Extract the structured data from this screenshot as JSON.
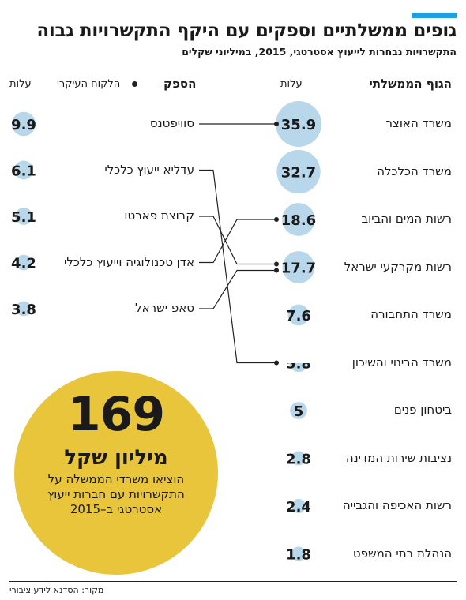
{
  "header": {
    "title": "גופים ממשלתיים וספקים עם היקף התקשרויות גבוה",
    "subtitle": "התקשרויות נבחרות לייעוץ אסטרטגי, 2015, במיליוני שקלים",
    "left_col_title": "הגוף הממשלתי",
    "left_cost_label": "עלות",
    "right_col_title": "הספק",
    "legend_label": "הלקוח העיקרי",
    "right_cost_label": "עלות"
  },
  "highlight": {
    "number": "169",
    "unit": "מיליון שקל",
    "text": "הוציאו משרדי הממשלה על התקשרויות עם חברות ייעוץ אסטרטגי ב–2015"
  },
  "source": "מקור: הסדנא לידע ציבורי",
  "colors": {
    "accent": "#1ea0e0",
    "bubble": "#b9d7ea",
    "highlight_circle": "#e9c53b",
    "line": "#222222"
  },
  "chart_data": {
    "type": "bubble-connector",
    "title": "גופים ממשלתיים וספקים עם היקף התקשרויות גבוה",
    "subtitle": "התקשרויות נבחרות לייעוץ אסטרטגי, 2015, במיליוני שקלים",
    "ministries": [
      {
        "name": "משרד האוצר",
        "cost": 35.9,
        "label": "35.9"
      },
      {
        "name": "משרד הכלכלה",
        "cost": 32.7,
        "label": "32.7"
      },
      {
        "name": "רשות המים והביוב",
        "cost": 18.6,
        "label": "18.6"
      },
      {
        "name": "רשות מקרקעי ישראל",
        "cost": 17.7,
        "label": "17.7"
      },
      {
        "name": "משרד התחבורה",
        "cost": 7.6,
        "label": "7.6"
      },
      {
        "name": "משרד הבינוי והשיכון",
        "cost": 5.8,
        "label": "5.8"
      },
      {
        "name": "ביטחון פנים",
        "cost": 5,
        "label": "5"
      },
      {
        "name": "נציבות שירות המדינה",
        "cost": 2.8,
        "label": "2.8"
      },
      {
        "name": "רשות האכיפה והגבייה",
        "cost": 2.4,
        "label": "2.4"
      },
      {
        "name": "הנהלת בתי המשפט",
        "cost": 1.8,
        "label": "1.8"
      }
    ],
    "suppliers": [
      {
        "name": "סוויפטנס",
        "cost": 9.9,
        "label": "9.9",
        "main_client": "משרד האוצר"
      },
      {
        "name": "עדליא ייעוץ כלכלי",
        "cost": 6.1,
        "label": "6.1",
        "main_client": "משרד הבינוי והשיכון"
      },
      {
        "name": "קבוצת פארטו",
        "cost": 5.1,
        "label": "5.1",
        "main_client": "רשות מקרקעי ישראל"
      },
      {
        "name": "אדן טכנולוגיה וייעוץ כלכלי",
        "cost": 4.2,
        "label": "4.2",
        "main_client": "רשות המים והביוב"
      },
      {
        "name": "סאפ ישראל",
        "cost": 3.8,
        "label": "3.8",
        "main_client": "רשות מקרקעי ישראל"
      }
    ]
  }
}
